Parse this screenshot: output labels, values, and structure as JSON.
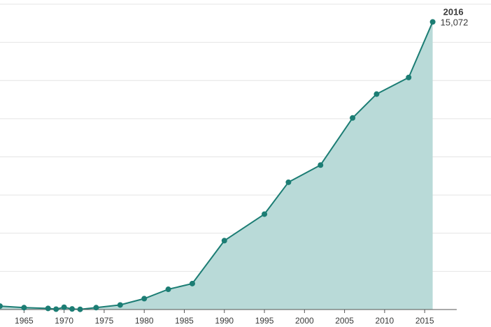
{
  "chart_data": {
    "type": "area",
    "x": [
      1962,
      1965,
      1968,
      1969,
      1970,
      1971,
      1972,
      1974,
      1977,
      1980,
      1983,
      1986,
      1990,
      1995,
      1998,
      2002,
      2006,
      2009,
      2013,
      2016
    ],
    "values": [
      180,
      100,
      60,
      20,
      120,
      30,
      10,
      100,
      240,
      570,
      1060,
      1360,
      3610,
      5000,
      6670,
      7570,
      10040,
      11290,
      12160,
      15072
    ],
    "x_ticks": [
      "1965",
      "1970",
      "1975",
      "1980",
      "1985",
      "1990",
      "1995",
      "2000",
      "2005",
      "2010",
      "2015"
    ],
    "xlim": [
      1962,
      2019
    ],
    "ylim": [
      0,
      16000
    ],
    "grid": "horizontal",
    "callout": {
      "year": "2016",
      "value": "15,072"
    },
    "colors": {
      "line": "#1c7d74",
      "fill": "#b9dad8",
      "grid": "#e4e4e4",
      "text": "#3a3a3a"
    }
  }
}
